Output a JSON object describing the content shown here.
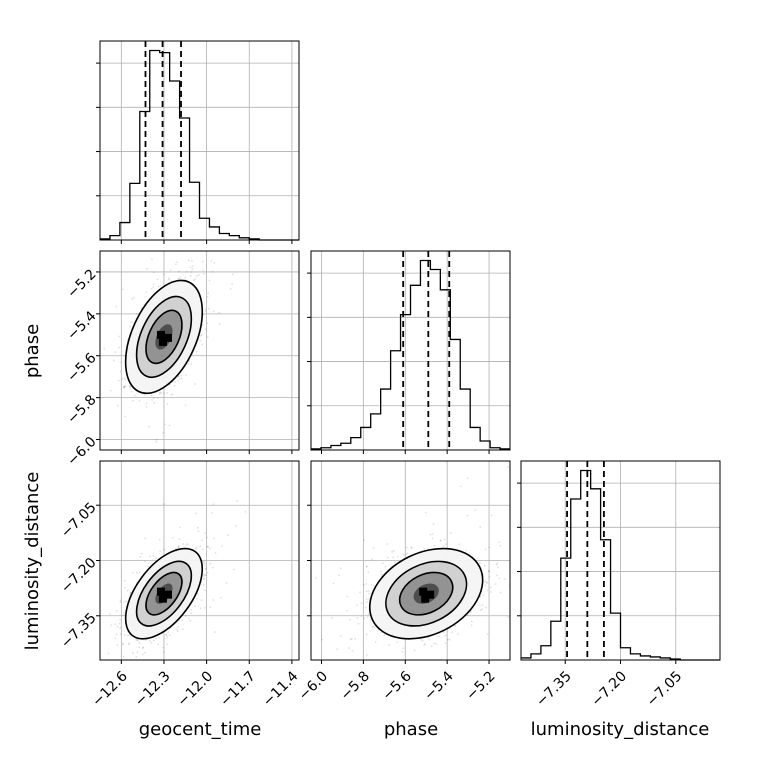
{
  "chart_data": {
    "type": "corner",
    "parameters": [
      "geocent_time",
      "phase",
      "luminosity_distance"
    ],
    "ranges": {
      "geocent_time": [
        -12.75,
        -11.35
      ],
      "phase": [
        -6.05,
        -5.1
      ],
      "luminosity_distance": [
        -7.47,
        -6.93
      ]
    },
    "ticks": {
      "geocent_time": {
        "values": [
          -12.6,
          -12.3,
          -12.0,
          -11.7,
          -11.4
        ],
        "labels": [
          "−12.6",
          "−12.3",
          "−12.0",
          "−11.7",
          "−11.4"
        ]
      },
      "phase": {
        "values": [
          -6.0,
          -5.8,
          -5.6,
          -5.4,
          -5.2
        ],
        "labels": [
          "−6.0",
          "−5.8",
          "−5.6",
          "−5.4",
          "−5.2"
        ]
      },
      "luminosity_distance": {
        "values": [
          -7.35,
          -7.2,
          -7.05
        ],
        "labels": [
          "−7.35",
          "−7.20",
          "−7.05"
        ]
      }
    },
    "quantiles": {
      "geocent_time": [
        -12.43,
        -12.31,
        -12.18
      ],
      "phase": [
        -5.61,
        -5.49,
        -5.39
      ],
      "luminosity_distance": [
        -7.345,
        -7.29,
        -7.245
      ]
    },
    "histograms": {
      "geocent_time": {
        "edges": [
          -12.75,
          -12.68,
          -12.61,
          -12.54,
          -12.47,
          -12.4,
          -12.33,
          -12.26,
          -12.19,
          -12.12,
          -12.05,
          -11.98,
          -11.91,
          -11.84,
          -11.77,
          -11.7,
          -11.63,
          -11.56,
          -11.49,
          -11.42,
          -11.35
        ],
        "counts": [
          1,
          4,
          16,
          52,
          118,
          174,
          172,
          146,
          112,
          53,
          20,
          12,
          6,
          4,
          2,
          1,
          0,
          0,
          0,
          0
        ]
      },
      "phase": {
        "edges": [
          -6.05,
          -6.0025,
          -5.955,
          -5.9075,
          -5.86,
          -5.8125,
          -5.765,
          -5.7175,
          -5.67,
          -5.6225,
          -5.575,
          -5.5275,
          -5.48,
          -5.4325,
          -5.385,
          -5.3375,
          -5.29,
          -5.2425,
          -5.195,
          -5.1475,
          -5.1
        ],
        "counts": [
          1,
          2,
          4,
          6,
          11,
          20,
          32,
          54,
          88,
          120,
          146,
          168,
          160,
          142,
          98,
          54,
          20,
          8,
          2,
          1
        ]
      },
      "luminosity_distance": {
        "edges": [
          -7.47,
          -7.443,
          -7.416,
          -7.389,
          -7.362,
          -7.335,
          -7.308,
          -7.281,
          -7.254,
          -7.227,
          -7.2,
          -7.173,
          -7.146,
          -7.119,
          -7.092,
          -7.065,
          -7.038,
          -7.011,
          -6.984,
          -6.957,
          -6.93
        ],
        "counts": [
          2,
          6,
          14,
          38,
          100,
          158,
          186,
          168,
          118,
          46,
          12,
          6,
          4,
          3,
          2,
          1,
          0,
          0,
          0,
          0
        ]
      }
    },
    "samples_2d": [
      {
        "x": "geocent_time",
        "y": "phase",
        "center": [
          -12.3,
          -5.51
        ],
        "sd": [
          0.11,
          0.11
        ],
        "rho": 0.45
      },
      {
        "x": "geocent_time",
        "y": "luminosity_distance",
        "center": [
          -12.3,
          -7.29
        ],
        "sd": [
          0.11,
          0.05
        ],
        "rho": 0.55
      },
      {
        "x": "phase",
        "y": "luminosity_distance",
        "center": [
          -5.5,
          -7.29
        ],
        "sd": [
          0.11,
          0.05
        ],
        "rho": 0.3
      }
    ],
    "grid": true,
    "legend": "none"
  }
}
